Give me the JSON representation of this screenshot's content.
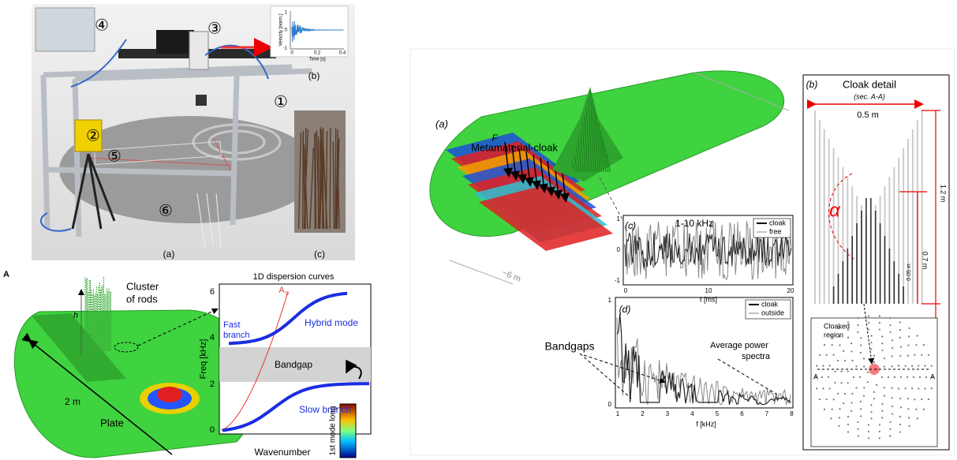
{
  "setup": {
    "markers": [
      "④",
      "③",
      "①",
      "②",
      "⑤",
      "⑥"
    ],
    "labels": [
      "(a)",
      "(b)",
      "(c)"
    ],
    "velocity_plot": {
      "y_label": "Velocity [norm.]",
      "y_ticks": [
        "1",
        "0",
        "-1"
      ],
      "x_ticks": [
        "0",
        "0.2",
        "0.4"
      ],
      "x_label": "Time [s]"
    }
  },
  "model": {
    "panel_label": "A",
    "cluster_label": [
      "Cluster",
      "of rods"
    ],
    "height_label": "h",
    "width_label": "2 m",
    "plate_label": "Plate",
    "dispersion": {
      "title": "1D dispersion curves",
      "y_label": "Freq [kHz]",
      "y_ticks": [
        "0",
        "2",
        "4",
        "6"
      ],
      "x_label": "Wavenumber",
      "a0": "A",
      "a0_sub": "0",
      "hybrid": "Hybrid mode",
      "fast": [
        "Fast",
        "branch"
      ],
      "bandgap": "Bandgap",
      "slow": "Slow branch",
      "colorbar": "1st mode long"
    }
  },
  "cloak": {
    "panel_label": "(a)",
    "cloak_label": "Metamaterial-cloak",
    "force": "F",
    "length": "~6 m",
    "time_plot": {
      "panel_label": "(c)",
      "title": "1-10 kHz",
      "legend": [
        "cloak",
        "free"
      ],
      "y_ticks": [
        "1",
        "0",
        "-1"
      ],
      "x_ticks": [
        "0",
        "10",
        "20"
      ],
      "x_label": "t [ms]"
    },
    "spectra_plot": {
      "panel_label": "(d)",
      "legend": [
        "cloak",
        "outside"
      ],
      "y_ticks": [
        "1",
        "0"
      ],
      "x_ticks": [
        "1",
        "2",
        "3",
        "4",
        "5",
        "6",
        "7",
        "8"
      ],
      "x_label": "f [kHz]",
      "bandgaps": "Bandgaps",
      "average": [
        "Average power",
        "spectra"
      ]
    },
    "detail": {
      "panel_label": "(b)",
      "title": "Cloak detail",
      "section": "(sec. A-A)",
      "width": "0.5 m",
      "angle": "α",
      "height": "1.2 m",
      "inner": "0.7 m",
      "gap": "0.05 m",
      "region": [
        "Cloaked",
        "region"
      ],
      "section_marks": [
        "A",
        "A"
      ]
    }
  }
}
